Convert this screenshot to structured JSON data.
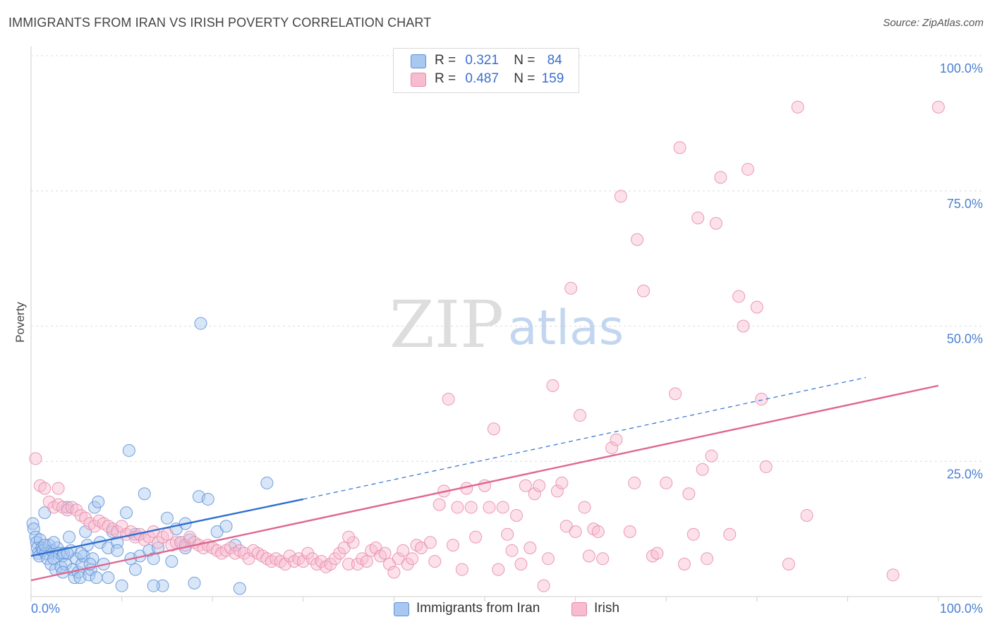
{
  "title": "IMMIGRANTS FROM IRAN VS IRISH POVERTY CORRELATION CHART",
  "source": "Source: ZipAtlas.com",
  "watermark": {
    "zip": "ZIP",
    "atlas": "atlas"
  },
  "legend": {
    "rows": [
      {
        "r_label": "R =",
        "r_value": "0.321",
        "n_label": "N =",
        "n_value": "84",
        "color": "#a8c8f0",
        "border": "#5b8fd8"
      },
      {
        "r_label": "R =",
        "r_value": "0.487",
        "n_label": "N =",
        "n_value": "159",
        "color": "#f8bcd0",
        "border": "#e58aa8"
      }
    ]
  },
  "bottom_legend": [
    {
      "label": "Immigrants from Iran",
      "color": "#a8c8f0",
      "border": "#5b8fd8"
    },
    {
      "label": "Irish",
      "color": "#f8bcd0",
      "border": "#e58aa8"
    }
  ],
  "chart_data": {
    "type": "scatter",
    "xlabel": "",
    "ylabel": "Poverty",
    "xlim": [
      0,
      100
    ],
    "ylim": [
      0,
      100
    ],
    "x_tick_labels": [
      "0.0%",
      "100.0%"
    ],
    "y_tick_labels": [
      "25.0%",
      "50.0%",
      "75.0%",
      "100.0%"
    ],
    "y_ticks": [
      25,
      50,
      75,
      100
    ],
    "grid": true,
    "series": [
      {
        "name": "Immigrants from Iran",
        "color": "#5b8fd8",
        "fill": "#a8c8f0",
        "line_color": "#2e6fd0",
        "trend": {
          "x0": 0,
          "y0": 7.5,
          "x1": 30,
          "y1": 18,
          "dash_to_x": 92,
          "dash_to_y": 40.5
        },
        "points": [
          [
            0.2,
            13.5
          ],
          [
            0.3,
            12.5
          ],
          [
            0.5,
            11
          ],
          [
            0.6,
            10
          ],
          [
            0.7,
            9
          ],
          [
            0.8,
            8
          ],
          [
            0.9,
            7.5
          ],
          [
            1,
            10.5
          ],
          [
            1.2,
            9
          ],
          [
            1.3,
            8.5
          ],
          [
            1.5,
            15.5
          ],
          [
            1.6,
            8
          ],
          [
            1.8,
            7
          ],
          [
            2,
            9.5
          ],
          [
            2.2,
            6
          ],
          [
            2.3,
            8.5
          ],
          [
            2.5,
            7
          ],
          [
            2.7,
            5
          ],
          [
            2.9,
            9
          ],
          [
            3.1,
            8
          ],
          [
            3.3,
            5.5
          ],
          [
            3.5,
            7.5
          ],
          [
            3.6,
            8
          ],
          [
            3.8,
            6
          ],
          [
            4,
            16.5
          ],
          [
            4.2,
            11
          ],
          [
            4.4,
            8.5
          ],
          [
            4.6,
            5
          ],
          [
            4.8,
            3.5
          ],
          [
            5,
            7
          ],
          [
            5.2,
            4.5
          ],
          [
            5.4,
            3.5
          ],
          [
            5.6,
            6
          ],
          [
            5.8,
            7.5
          ],
          [
            6,
            12
          ],
          [
            6.2,
            9.5
          ],
          [
            6.4,
            4
          ],
          [
            6.6,
            5
          ],
          [
            6.8,
            7
          ],
          [
            7,
            16.5
          ],
          [
            7.2,
            3.5
          ],
          [
            7.4,
            17.5
          ],
          [
            7.6,
            10
          ],
          [
            8,
            6
          ],
          [
            8.5,
            9
          ],
          [
            9,
            12
          ],
          [
            9.5,
            10
          ],
          [
            10,
            2
          ],
          [
            10.5,
            15.5
          ],
          [
            10.8,
            27
          ],
          [
            11,
            7
          ],
          [
            11.5,
            11.5
          ],
          [
            12,
            7.5
          ],
          [
            12.5,
            19
          ],
          [
            13,
            8.5
          ],
          [
            13.5,
            7
          ],
          [
            14,
            9
          ],
          [
            14.5,
            2
          ],
          [
            15,
            14.5
          ],
          [
            15.5,
            6.5
          ],
          [
            16,
            12.5
          ],
          [
            16.5,
            10
          ],
          [
            17,
            13.5
          ],
          [
            17.5,
            10.5
          ],
          [
            18,
            2.5
          ],
          [
            18.5,
            18.5
          ],
          [
            19.5,
            18
          ],
          [
            20.5,
            12
          ],
          [
            21.5,
            13
          ],
          [
            22.5,
            9.5
          ],
          [
            23,
            1.5
          ],
          [
            18.7,
            50.5
          ],
          [
            26,
            21
          ],
          [
            1.5,
            9.5
          ],
          [
            2.5,
            10
          ],
          [
            3.5,
            4.5
          ],
          [
            4,
            8
          ],
          [
            5.5,
            8
          ],
          [
            6.5,
            6
          ],
          [
            8.5,
            3.5
          ],
          [
            9.5,
            8.5
          ],
          [
            11.5,
            5
          ],
          [
            13.5,
            2
          ],
          [
            17,
            9
          ]
        ]
      },
      {
        "name": "Irish",
        "color": "#e58aa8",
        "fill": "#f8bcd0",
        "line_color": "#e0668e",
        "trend": {
          "x0": 0,
          "y0": 3,
          "x1": 100,
          "y1": 39
        },
        "points": [
          [
            0.5,
            25.5
          ],
          [
            1,
            20.5
          ],
          [
            1.5,
            20
          ],
          [
            2,
            17.5
          ],
          [
            2.5,
            16.5
          ],
          [
            3,
            17
          ],
          [
            3.5,
            16.5
          ],
          [
            4,
            16
          ],
          [
            4.5,
            16.5
          ],
          [
            5,
            16
          ],
          [
            5.5,
            15
          ],
          [
            6,
            14.5
          ],
          [
            6.5,
            13.5
          ],
          [
            7,
            13
          ],
          [
            7.5,
            14
          ],
          [
            8,
            13.5
          ],
          [
            8.5,
            13
          ],
          [
            9,
            12.5
          ],
          [
            9.5,
            12
          ],
          [
            10,
            13
          ],
          [
            10.5,
            11.5
          ],
          [
            11,
            12
          ],
          [
            11.5,
            11
          ],
          [
            12,
            11.5
          ],
          [
            12.5,
            10.5
          ],
          [
            13,
            11
          ],
          [
            13.5,
            12
          ],
          [
            14,
            10
          ],
          [
            14.5,
            11
          ],
          [
            15,
            11.5
          ],
          [
            15.5,
            9.5
          ],
          [
            16,
            10
          ],
          [
            16.5,
            10
          ],
          [
            17,
            9.5
          ],
          [
            17.5,
            11
          ],
          [
            18,
            10
          ],
          [
            18.5,
            9.5
          ],
          [
            19,
            9
          ],
          [
            19.5,
            9.5
          ],
          [
            20,
            9
          ],
          [
            20.5,
            8.5
          ],
          [
            21,
            8
          ],
          [
            21.5,
            8.5
          ],
          [
            22,
            9
          ],
          [
            22.5,
            8
          ],
          [
            23,
            8.5
          ],
          [
            23.5,
            8
          ],
          [
            24,
            7
          ],
          [
            24.5,
            8.5
          ],
          [
            25,
            8
          ],
          [
            25.5,
            7.5
          ],
          [
            26,
            7
          ],
          [
            26.5,
            6.5
          ],
          [
            27,
            7
          ],
          [
            27.5,
            6.5
          ],
          [
            28,
            6
          ],
          [
            28.5,
            7.5
          ],
          [
            29,
            6.5
          ],
          [
            29.5,
            7
          ],
          [
            30,
            6.5
          ],
          [
            30.5,
            8
          ],
          [
            31,
            7
          ],
          [
            31.5,
            6
          ],
          [
            32,
            6.5
          ],
          [
            32.5,
            5.5
          ],
          [
            33,
            6
          ],
          [
            33.5,
            7
          ],
          [
            34,
            8
          ],
          [
            34.5,
            9
          ],
          [
            35,
            6
          ],
          [
            35.5,
            10
          ],
          [
            36,
            6
          ],
          [
            36.5,
            7
          ],
          [
            37,
            6.5
          ],
          [
            37.5,
            8.5
          ],
          [
            38,
            9
          ],
          [
            38.5,
            7.5
          ],
          [
            39,
            8
          ],
          [
            39.5,
            6
          ],
          [
            40,
            4.5
          ],
          [
            40.5,
            7
          ],
          [
            41,
            8.5
          ],
          [
            41.5,
            6
          ],
          [
            42,
            7
          ],
          [
            42.5,
            9.5
          ],
          [
            43,
            9
          ],
          [
            44,
            10
          ],
          [
            44.5,
            6.5
          ],
          [
            45,
            17
          ],
          [
            45.5,
            19.5
          ],
          [
            46,
            36.5
          ],
          [
            46.5,
            9.5
          ],
          [
            47,
            16.5
          ],
          [
            47.5,
            5
          ],
          [
            48,
            20
          ],
          [
            48.5,
            16.5
          ],
          [
            49,
            11
          ],
          [
            50,
            20.5
          ],
          [
            50.5,
            16.5
          ],
          [
            51,
            31
          ],
          [
            51.5,
            5
          ],
          [
            52,
            16.5
          ],
          [
            52.5,
            11.5
          ],
          [
            53,
            8.5
          ],
          [
            53.5,
            15
          ],
          [
            54,
            6
          ],
          [
            54.5,
            20.5
          ],
          [
            55,
            9
          ],
          [
            55.5,
            19
          ],
          [
            56,
            20.5
          ],
          [
            56.5,
            2
          ],
          [
            57,
            7
          ],
          [
            57.5,
            39
          ],
          [
            58,
            19.5
          ],
          [
            58.5,
            21
          ],
          [
            59,
            13
          ],
          [
            59.5,
            57
          ],
          [
            60,
            12
          ],
          [
            60.5,
            33.5
          ],
          [
            61,
            16.5
          ],
          [
            61.5,
            7.5
          ],
          [
            62,
            12.5
          ],
          [
            62.5,
            12
          ],
          [
            63,
            7
          ],
          [
            64,
            27.5
          ],
          [
            64.5,
            29
          ],
          [
            65,
            74
          ],
          [
            66,
            12
          ],
          [
            66.5,
            21
          ],
          [
            66.8,
            66
          ],
          [
            67.5,
            56.5
          ],
          [
            68.5,
            7.5
          ],
          [
            69,
            8
          ],
          [
            70,
            21
          ],
          [
            71,
            37.5
          ],
          [
            71.5,
            83
          ],
          [
            72,
            6
          ],
          [
            72.5,
            19
          ],
          [
            73,
            11.5
          ],
          [
            73.5,
            70
          ],
          [
            74,
            23.5
          ],
          [
            74.5,
            7
          ],
          [
            75,
            26
          ],
          [
            75.5,
            69
          ],
          [
            76,
            77.5
          ],
          [
            77,
            11.5
          ],
          [
            78,
            55.5
          ],
          [
            78.5,
            50
          ],
          [
            79,
            79
          ],
          [
            80,
            53.5
          ],
          [
            80.5,
            36.5
          ],
          [
            81,
            24
          ],
          [
            83.5,
            6
          ],
          [
            84.5,
            90.5
          ],
          [
            85.5,
            15
          ],
          [
            95,
            4
          ],
          [
            100,
            90.5
          ],
          [
            35,
            11
          ],
          [
            3,
            20
          ]
        ]
      }
    ]
  }
}
